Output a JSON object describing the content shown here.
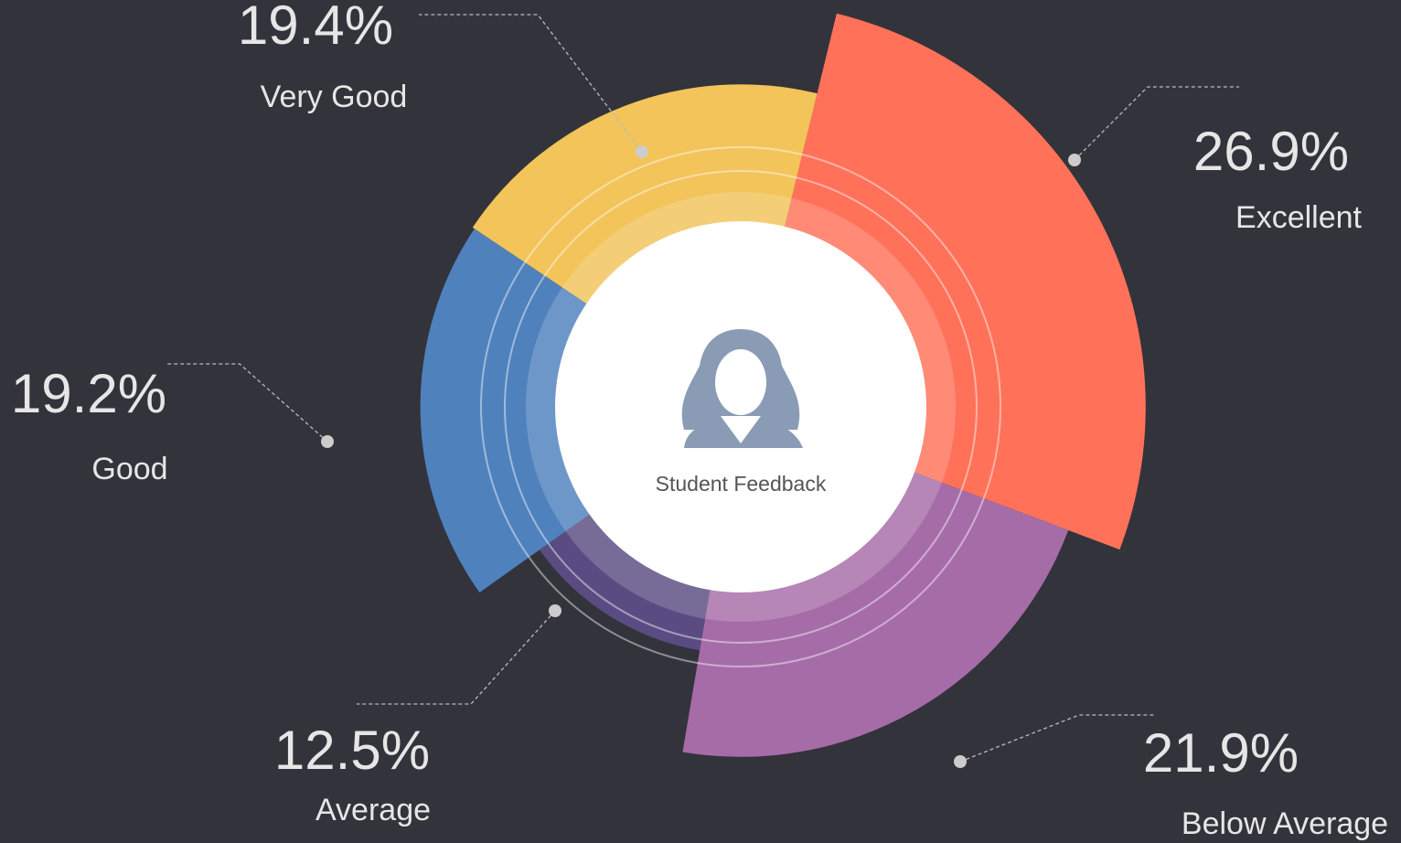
{
  "chart_data": {
    "type": "pie",
    "center_label": "Student Feedback",
    "categories": [
      "Excellent",
      "Below Average",
      "Average",
      "Good",
      "Very Good"
    ],
    "values": [
      26.9,
      21.9,
      12.5,
      19.2,
      19.4
    ],
    "value_labels": [
      "26.9%",
      "21.9%",
      "12.5%",
      "19.2%",
      "19.4%"
    ],
    "colors": [
      "#ff7259",
      "#a66ca8",
      "#5a4c82",
      "#4f81bd",
      "#f2c45a"
    ]
  }
}
